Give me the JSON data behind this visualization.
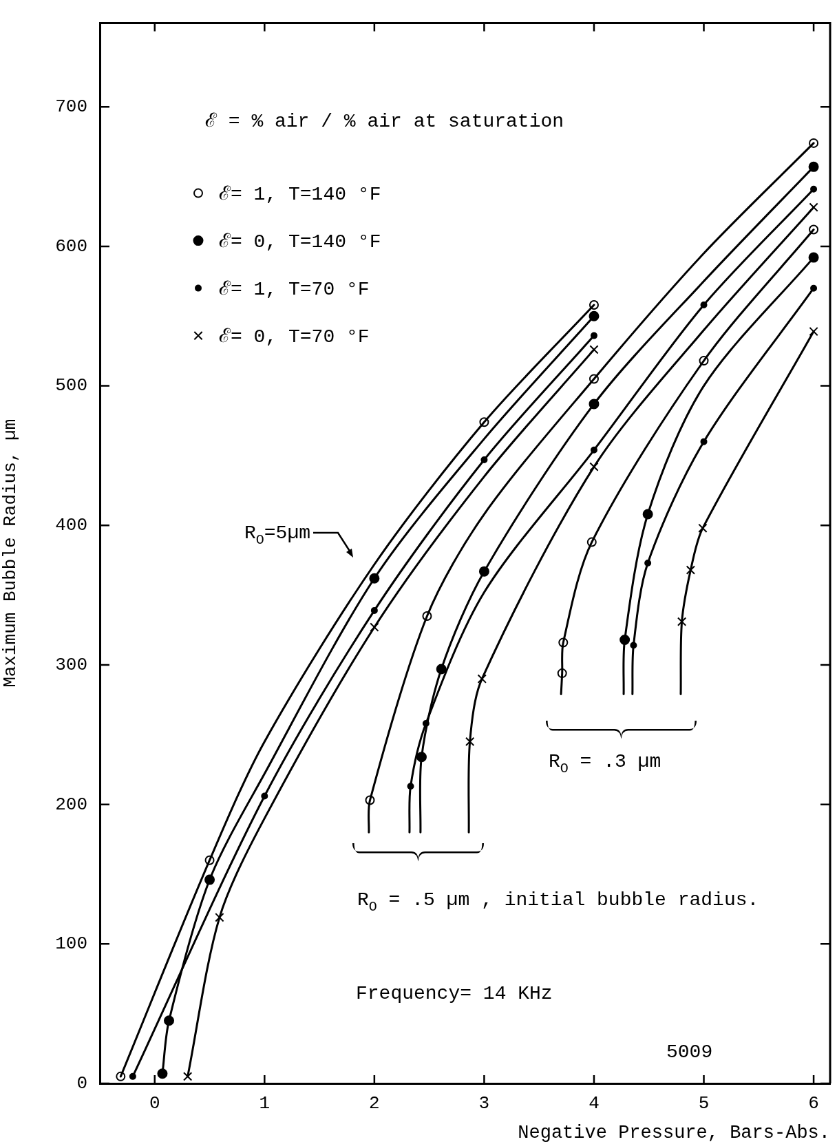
{
  "chart_data": {
    "type": "line",
    "xlabel": "Negative Pressure, Bars-Abs.",
    "ylabel": "Maximum Bubble Radius, µm",
    "legend_title": "ℰ = % air / % air at saturation",
    "legend": "top left",
    "xlim": [
      -0.5,
      6.15
    ],
    "xticks": [
      0,
      1,
      2,
      3,
      4,
      5,
      6
    ],
    "ylim": [
      0,
      760
    ],
    "yticks": [
      0,
      100,
      200,
      300,
      400,
      500,
      600,
      700
    ],
    "annotations": [
      "R$_{O}$=5µm",
      "R$_{O}$ = .5 µm , initial bubble radius.",
      "R$_{O}$ = .3 µm",
      "Frequency= 14 KHz",
      "5009"
    ],
    "series": [
      {
        "type": "line",
        "marker": "none",
        "color": "#000000",
        "x": [
          -0.31,
          0.5,
          1,
          2,
          3,
          4
        ],
        "values": [
          5,
          160,
          245,
          372,
          474,
          558
        ]
      },
      {
        "type": "line",
        "marker": "none",
        "color": "#000000",
        "x": [
          0.07,
          0.13,
          0.5,
          1,
          2,
          3,
          4
        ],
        "values": [
          7,
          45,
          146,
          222,
          362,
          462,
          550
        ]
      },
      {
        "type": "line",
        "marker": "none",
        "color": "#000000",
        "x": [
          -0.2,
          1,
          2,
          3,
          4
        ],
        "values": [
          5,
          206,
          339,
          447,
          536
        ]
      },
      {
        "type": "line",
        "marker": "none",
        "color": "#000000",
        "x": [
          0.3,
          0.59,
          1,
          2,
          3,
          4
        ],
        "values": [
          5,
          119,
          190,
          327,
          435,
          526
        ]
      },
      {
        "type": "line",
        "marker": "none",
        "color": "#000000",
        "x": [
          1.95,
          1.96,
          2.48,
          3,
          4,
          5,
          6
        ],
        "values": [
          180,
          203,
          335,
          408,
          505,
          595,
          674
        ]
      },
      {
        "type": "line",
        "marker": "none",
        "color": "#000000",
        "x": [
          2.42,
          2.43,
          2.61,
          3,
          4,
          5,
          6
        ],
        "values": [
          180,
          234,
          297,
          367,
          487,
          575,
          657
        ]
      },
      {
        "type": "line",
        "marker": "none",
        "color": "#000000",
        "x": [
          2.32,
          2.33,
          2.47,
          3,
          4,
          5,
          6
        ],
        "values": [
          180,
          213,
          258,
          352,
          454,
          558,
          641
        ]
      },
      {
        "type": "line",
        "marker": "none",
        "color": "#000000",
        "x": [
          2.86,
          2.87,
          2.98,
          4,
          5,
          6
        ],
        "values": [
          180,
          245,
          290,
          442,
          540,
          628
        ]
      },
      {
        "type": "line",
        "marker": "none",
        "color": "#000000",
        "x": [
          3.7,
          3.71,
          3.72,
          3.98,
          5,
          6
        ],
        "values": [
          279,
          294,
          316,
          388,
          518,
          612
        ]
      },
      {
        "type": "line",
        "marker": "none",
        "color": "#000000",
        "x": [
          4.27,
          4.28,
          4.49,
          5,
          6
        ],
        "values": [
          279,
          318,
          408,
          500,
          592
        ]
      },
      {
        "type": "line",
        "marker": "none",
        "color": "#000000",
        "x": [
          4.35,
          4.36,
          4.49,
          5,
          6
        ],
        "values": [
          279,
          314,
          373,
          460,
          570
        ]
      },
      {
        "type": "line",
        "marker": "none",
        "color": "#000000",
        "x": [
          4.79,
          4.8,
          4.88,
          4.99,
          6
        ],
        "values": [
          279,
          331,
          368,
          398,
          539
        ]
      },
      {
        "type": "scatter",
        "marker": "circle",
        "name": "ℰ= 1, T=140 °F",
        "color": "#000000",
        "x": [
          -0.31,
          0.5,
          3,
          4,
          1.96,
          2.48,
          4,
          6,
          3.71,
          3.72,
          3.98,
          5,
          6
        ],
        "values": [
          5,
          160,
          474,
          558,
          203,
          335,
          505,
          674,
          294,
          316,
          388,
          518,
          612
        ]
      },
      {
        "type": "scatter",
        "marker": "circle",
        "name": "ℰ= 0, T=140 °F",
        "color": "#000000",
        "x": [
          0.07,
          0.13,
          0.5,
          2,
          4,
          2.43,
          2.61,
          3,
          4,
          6,
          4.28,
          4.49,
          6
        ],
        "values": [
          7,
          45,
          146,
          362,
          550,
          234,
          297,
          367,
          487,
          657,
          318,
          408,
          592
        ]
      },
      {
        "type": "scatter",
        "marker": "circle",
        "name": "ℰ= 1, T=70 °F",
        "color": "#000000",
        "x": [
          -0.2,
          1,
          2,
          3,
          4,
          2.33,
          2.47,
          4,
          5,
          6,
          4.36,
          4.49,
          5,
          6
        ],
        "values": [
          5,
          206,
          339,
          447,
          536,
          213,
          258,
          454,
          558,
          641,
          314,
          373,
          460,
          570
        ]
      },
      {
        "type": "scatter",
        "marker": "cross",
        "name": "ℰ= 0, T=70 °F",
        "color": "#000000",
        "x": [
          0.3,
          0.59,
          2,
          4,
          2.87,
          2.98,
          4,
          6,
          4.8,
          4.88,
          4.99,
          6
        ],
        "values": [
          5,
          119,
          327,
          526,
          245,
          290,
          442,
          628,
          331,
          368,
          398,
          539
        ]
      }
    ]
  }
}
